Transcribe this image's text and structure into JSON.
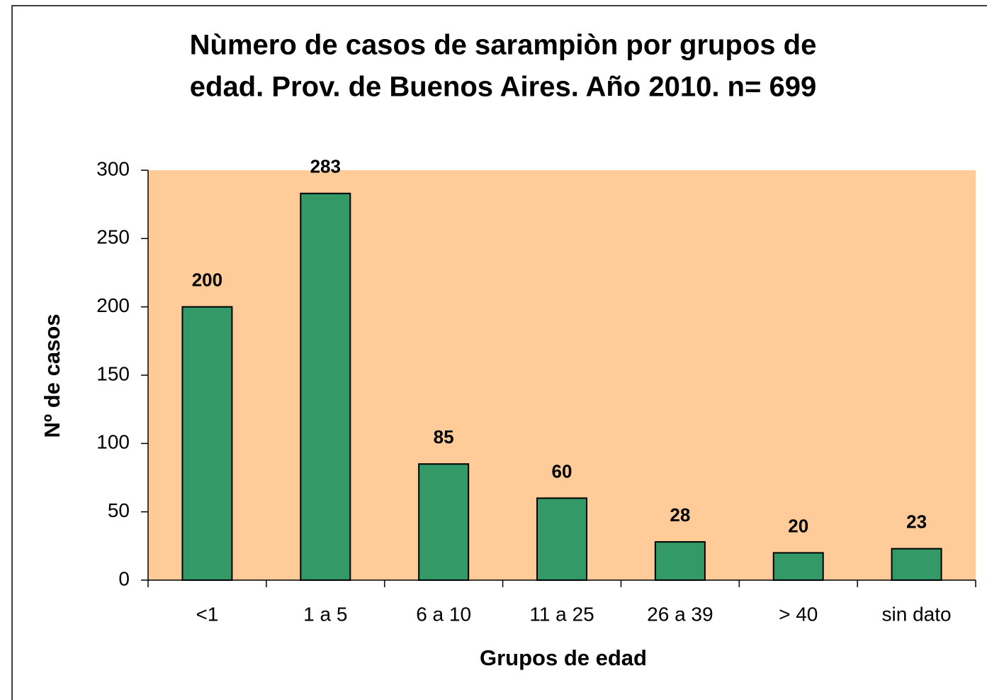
{
  "chart_data": {
    "type": "bar",
    "title": [
      "Nùmero de casos de sarampiòn por grupos de",
      "edad. Prov. de Buenos Aires. Año 2010. n= 699"
    ],
    "x_label": "Grupos de edad",
    "y_label": "Nº de casos",
    "categories": [
      "<1",
      "1 a 5",
      "6 a 10",
      "11 a 25",
      "26 a 39",
      "> 40",
      "sin dato"
    ],
    "values": [
      200,
      283,
      85,
      60,
      28,
      20,
      23
    ],
    "color": "#339966",
    "plot_background": "#FFCC99",
    "ylim": [
      0,
      300
    ],
    "yticks": [
      0,
      50,
      100,
      150,
      200,
      250,
      300
    ],
    "grid": false
  }
}
